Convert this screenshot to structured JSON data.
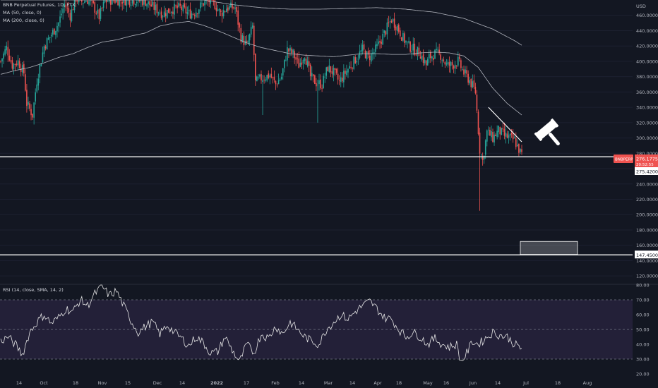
{
  "header": {
    "symbol_line": "BNB Perpetual Futures, 1D, FTX",
    "ma50_label": "MA (50, close, 0)",
    "ma200_label": "MA (200, close, 0)",
    "currency": "USD"
  },
  "rsi_panel": {
    "label": "RSI (14, close, SMA, 14, 2)"
  },
  "colors": {
    "background": "#131722",
    "up": "#26a69a",
    "down": "#ef5350",
    "ma": "#b2b5be",
    "rsi_band": "#2a2440",
    "line": "#ffffff"
  },
  "chart_data": [
    {
      "type": "candlestick",
      "title": "BNB Perpetual Futures, 1D, FTX",
      "ylim": [
        110,
        480
      ],
      "y_ticks": [
        "120.0000",
        "140.0000",
        "160.0000",
        "180.0000",
        "200.0000",
        "220.0000",
        "240.0000",
        "260.0000",
        "280.0000",
        "300.0000",
        "320.0000",
        "340.0000",
        "360.0000",
        "380.0000",
        "400.0000",
        "420.0000",
        "440.0000",
        "460.0000"
      ],
      "x_ticks": [
        "14",
        "Oct",
        "18",
        "Nov",
        "15",
        "Dec",
        "14",
        "2022",
        "17",
        "Feb",
        "14",
        "Mar",
        "14",
        "Apr",
        "18",
        "May",
        "16",
        "Jun",
        "14",
        "Jul",
        "18",
        "Aug"
      ],
      "series": [
        {
          "name": "MA (50, close, 0)",
          "anchors": [
            [
              0,
              383
            ],
            [
              10,
              388
            ],
            [
              20,
              392
            ],
            [
              30,
              398
            ],
            [
              40,
              405
            ],
            [
              50,
              410
            ],
            [
              60,
              418
            ],
            [
              70,
              425
            ],
            [
              80,
              428
            ],
            [
              90,
              433
            ],
            [
              100,
              437
            ],
            [
              110,
              446
            ],
            [
              120,
              450
            ],
            [
              130,
              452
            ],
            [
              140,
              447
            ],
            [
              150,
              440
            ],
            [
              160,
              432
            ],
            [
              170,
              424
            ],
            [
              180,
              418
            ],
            [
              190,
              414
            ],
            [
              200,
              410
            ],
            [
              210,
              408
            ],
            [
              220,
              407
            ],
            [
              230,
              406
            ],
            [
              240,
              408
            ],
            [
              250,
              410
            ],
            [
              260,
              410
            ],
            [
              270,
              409
            ],
            [
              280,
              409
            ],
            [
              290,
              411
            ],
            [
              300,
              412
            ],
            [
              310,
              411
            ],
            [
              320,
              407
            ],
            [
              330,
              392
            ],
            [
              340,
              365
            ],
            [
              350,
              345
            ],
            [
              360,
              330
            ]
          ]
        },
        {
          "name": "MA (200, close, 0)",
          "anchors": [
            [
              0,
              480
            ],
            [
              20,
              480
            ],
            [
              40,
              480
            ],
            [
              60,
              480
            ],
            [
              80,
              480
            ],
            [
              100,
              480
            ],
            [
              120,
              480
            ],
            [
              140,
              480
            ],
            [
              160,
              474
            ],
            [
              180,
              470
            ],
            [
              200,
              468
            ],
            [
              220,
              468
            ],
            [
              240,
              469
            ],
            [
              260,
              470
            ],
            [
              280,
              468
            ],
            [
              300,
              464
            ],
            [
              320,
              456
            ],
            [
              340,
              442
            ],
            [
              355,
              427
            ],
            [
              360,
              421
            ]
          ]
        }
      ],
      "candles_path": [
        [
          0,
          400
        ],
        [
          4,
          418
        ],
        [
          8,
          395
        ],
        [
          12,
          400
        ],
        [
          16,
          385
        ],
        [
          18,
          345
        ],
        [
          22,
          330
        ],
        [
          25,
          375
        ],
        [
          30,
          420
        ],
        [
          35,
          435
        ],
        [
          40,
          450
        ],
        [
          44,
          475
        ],
        [
          48,
          460
        ],
        [
          52,
          482
        ],
        [
          56,
          478
        ],
        [
          60,
          480
        ],
        [
          64,
          472
        ],
        [
          68,
          458
        ],
        [
          72,
          478
        ],
        [
          76,
          480
        ],
        [
          82,
          480
        ],
        [
          88,
          480
        ],
        [
          94,
          480
        ],
        [
          100,
          478
        ],
        [
          106,
          470
        ],
        [
          112,
          462
        ],
        [
          118,
          468
        ],
        [
          124,
          470
        ],
        [
          130,
          462
        ],
        [
          134,
          464
        ],
        [
          140,
          476
        ],
        [
          146,
          480
        ],
        [
          152,
          462
        ],
        [
          156,
          470
        ],
        [
          162,
          470
        ],
        [
          166,
          432
        ],
        [
          170,
          420
        ],
        [
          174,
          445
        ],
        [
          176,
          372
        ],
        [
          180,
          378
        ],
        [
          186,
          382
        ],
        [
          190,
          370
        ],
        [
          194,
          380
        ],
        [
          198,
          415
        ],
        [
          202,
          410
        ],
        [
          206,
          395
        ],
        [
          210,
          410
        ],
        [
          214,
          380
        ],
        [
          218,
          372
        ],
        [
          222,
          370
        ],
        [
          226,
          392
        ],
        [
          230,
          385
        ],
        [
          234,
          373
        ],
        [
          238,
          385
        ],
        [
          242,
          395
        ],
        [
          246,
          405
        ],
        [
          250,
          415
        ],
        [
          254,
          405
        ],
        [
          258,
          412
        ],
        [
          262,
          425
        ],
        [
          266,
          440
        ],
        [
          270,
          455
        ],
        [
          274,
          445
        ],
        [
          278,
          430
        ],
        [
          282,
          420
        ],
        [
          286,
          415
        ],
        [
          290,
          410
        ],
        [
          294,
          395
        ],
        [
          296,
          405
        ],
        [
          300,
          410
        ],
        [
          304,
          408
        ],
        [
          308,
          395
        ],
        [
          312,
          395
        ],
        [
          316,
          400
        ],
        [
          320,
          385
        ],
        [
          324,
          375
        ],
        [
          328,
          360
        ],
        [
          331,
          285
        ],
        [
          333,
          270
        ],
        [
          336,
          308
        ],
        [
          340,
          300
        ],
        [
          344,
          310
        ],
        [
          348,
          303
        ],
        [
          352,
          300
        ],
        [
          355,
          297
        ],
        [
          358,
          285
        ],
        [
          360,
          278
        ]
      ],
      "horizontal_levels": [
        275.42,
        147.45
      ],
      "level_labels": [
        "275.4200",
        "147.4500"
      ],
      "last_price": {
        "symbol": "BNBPERP",
        "value": "276.1775",
        "countdown": "20:52:55"
      },
      "down_trendline": [
        [
          337,
          340
        ],
        [
          360,
          295
        ]
      ],
      "target_zone": [
        148,
        165
      ],
      "annotation": "gavel-icon"
    },
    {
      "type": "line",
      "title": "RSI (14, close, SMA, 14, 2)",
      "ylim": [
        20,
        80
      ],
      "y_ticks": [
        "20.00",
        "30.00",
        "40.00",
        "50.00",
        "60.00",
        "70.00",
        "80.00"
      ],
      "band": [
        30,
        70
      ],
      "midline": 50,
      "series": [
        {
          "name": "RSI (14, close, SMA, 14, 2)",
          "anchors": [
            [
              0,
              42
            ],
            [
              5,
              45
            ],
            [
              10,
              40
            ],
            [
              15,
              33
            ],
            [
              20,
              48
            ],
            [
              25,
              55
            ],
            [
              30,
              60
            ],
            [
              35,
              54
            ],
            [
              40,
              58
            ],
            [
              45,
              64
            ],
            [
              50,
              62
            ],
            [
              55,
              70
            ],
            [
              60,
              66
            ],
            [
              65,
              74
            ],
            [
              70,
              79
            ],
            [
              75,
              73
            ],
            [
              80,
              76
            ],
            [
              85,
              66
            ],
            [
              90,
              56
            ],
            [
              95,
              48
            ],
            [
              100,
              52
            ],
            [
              105,
              55
            ],
            [
              110,
              47
            ],
            [
              115,
              53
            ],
            [
              120,
              48
            ],
            [
              125,
              44
            ],
            [
              130,
              39
            ],
            [
              135,
              45
            ],
            [
              140,
              41
            ],
            [
              145,
              34
            ],
            [
              150,
              35
            ],
            [
              155,
              45
            ],
            [
              160,
              36
            ],
            [
              165,
              28
            ],
            [
              170,
              40
            ],
            [
              175,
              34
            ],
            [
              180,
              47
            ],
            [
              185,
              44
            ],
            [
              190,
              52
            ],
            [
              195,
              47
            ],
            [
              200,
              55
            ],
            [
              205,
              50
            ],
            [
              210,
              45
            ],
            [
              215,
              42
            ],
            [
              220,
              40
            ],
            [
              225,
              50
            ],
            [
              230,
              55
            ],
            [
              235,
              60
            ],
            [
              240,
              57
            ],
            [
              245,
              62
            ],
            [
              250,
              66
            ],
            [
              255,
              69
            ],
            [
              260,
              64
            ],
            [
              265,
              58
            ],
            [
              270,
              57
            ],
            [
              275,
              50
            ],
            [
              280,
              45
            ],
            [
              285,
              48
            ],
            [
              290,
              45
            ],
            [
              295,
              40
            ],
            [
              300,
              44
            ],
            [
              305,
              40
            ],
            [
              310,
              38
            ],
            [
              315,
              40
            ],
            [
              318,
              28
            ],
            [
              322,
              34
            ],
            [
              326,
              42
            ],
            [
              330,
              40
            ],
            [
              335,
              44
            ],
            [
              340,
              48
            ],
            [
              345,
              46
            ],
            [
              350,
              45
            ],
            [
              355,
              40
            ],
            [
              360,
              37
            ]
          ]
        }
      ]
    }
  ]
}
